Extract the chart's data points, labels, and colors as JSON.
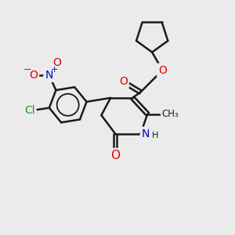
{
  "background_color": "#ebebeb",
  "bond_color": "#1a1a1a",
  "atom_colors": {
    "O": "#e60000",
    "N": "#0000cc",
    "Cl": "#00aa00",
    "C": "#1a1a1a",
    "H": "#1a1a1a"
  },
  "figsize": [
    3.0,
    3.0
  ],
  "dpi": 100,
  "xlim": [
    0,
    10
  ],
  "ylim": [
    0,
    10
  ]
}
